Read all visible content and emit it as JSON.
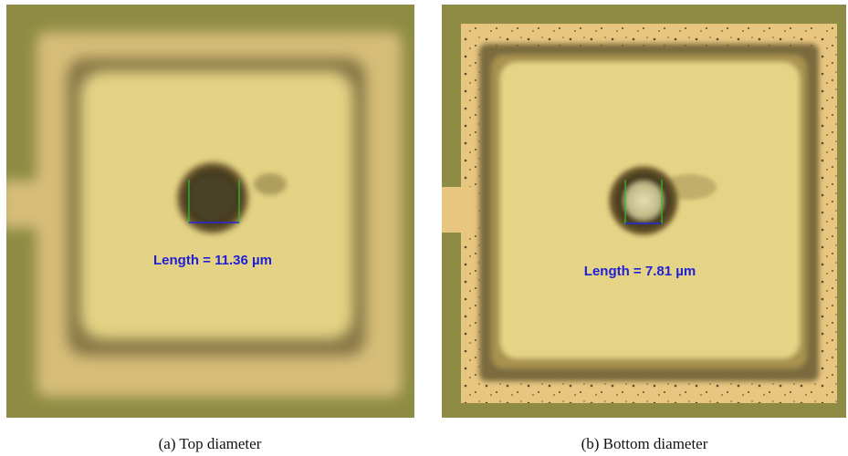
{
  "panels": [
    {
      "measurement": "Length = 11.36 µm",
      "caption": "(a)  Top diameter"
    },
    {
      "measurement": "Length = 7.81 µm",
      "caption": "(b)  Bottom diameter"
    }
  ]
}
